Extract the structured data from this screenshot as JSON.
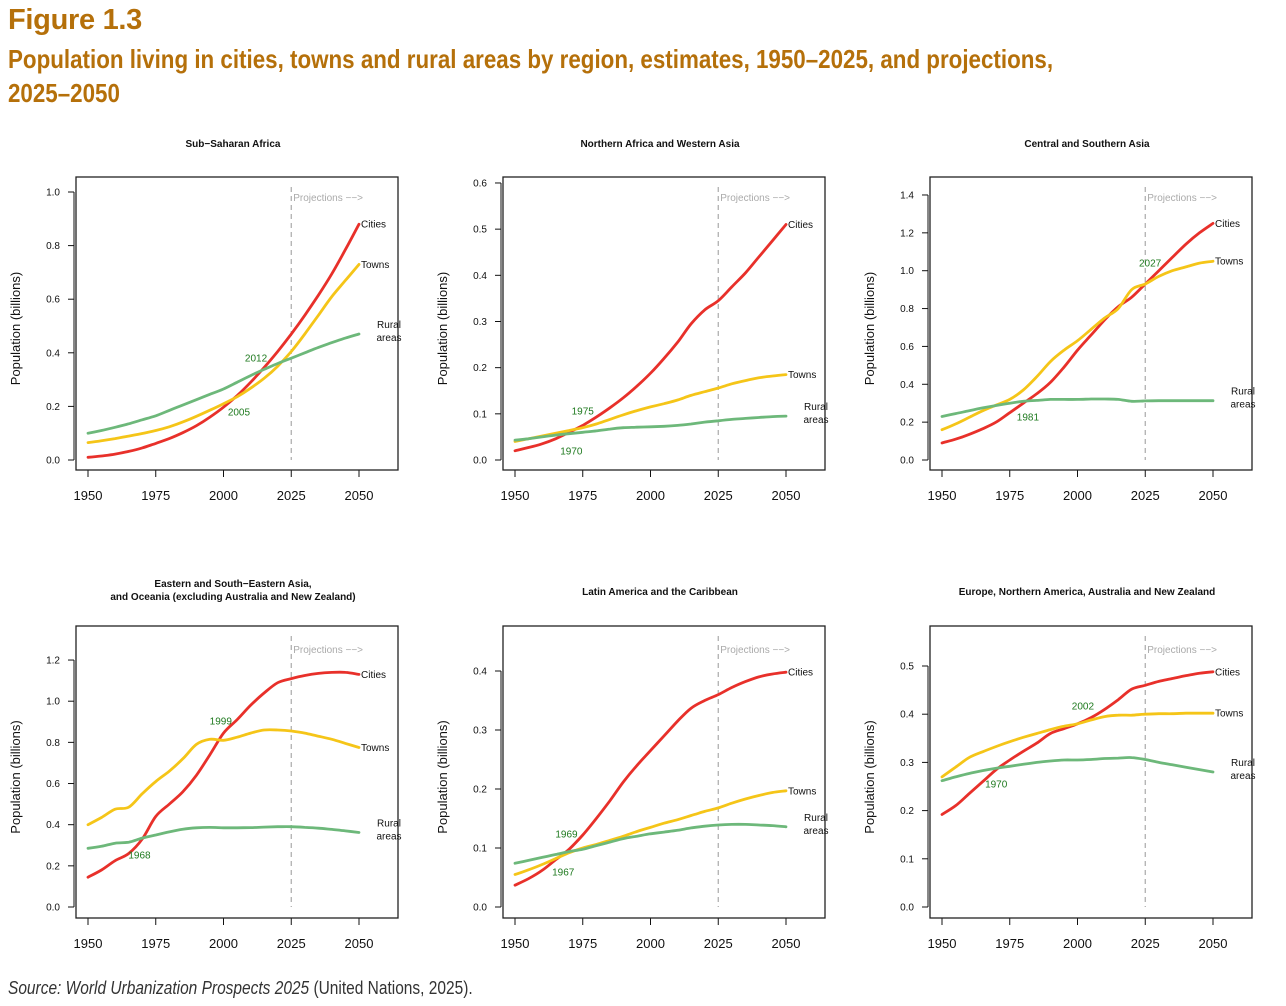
{
  "figure": {
    "label": "Figure 1.3",
    "title": "Population living in cities, towns and rural areas by region, estimates, 1950–2025, and projections, 2025–2050",
    "source_italic": "Source: World Urbanization Prospects 2025",
    "source_rest": " (United Nations, 2025)."
  },
  "colors": {
    "title": "#B5700A",
    "cities": "#E8302A",
    "towns": "#F5C518",
    "rural": "#6DB87A",
    "annotation": "#1F7A1F",
    "projection_line": "#AAAAAA"
  },
  "chart_data": [
    {
      "type": "line",
      "title": "Sub−Saharan Africa",
      "xlabel": "",
      "ylabel": "Population (billions)",
      "x": [
        1950,
        1955,
        1960,
        1965,
        1970,
        1975,
        1980,
        1985,
        1990,
        1995,
        2000,
        2005,
        2010,
        2015,
        2020,
        2025,
        2030,
        2035,
        2040,
        2045,
        2050
      ],
      "xticks": [
        1950,
        1975,
        2000,
        2025,
        2050
      ],
      "yticks": [
        "0.0",
        "0.2",
        "0.4",
        "0.6",
        "0.8",
        "1.0"
      ],
      "ylim": [
        0,
        1.0
      ],
      "projection_start": 2025,
      "projection_label": "Projections −−>",
      "series": [
        {
          "name": "Cities",
          "label": "Cities",
          "values": [
            0.01,
            0.015,
            0.022,
            0.032,
            0.045,
            0.062,
            0.08,
            0.102,
            0.128,
            0.16,
            0.197,
            0.24,
            0.29,
            0.345,
            0.405,
            0.47,
            0.54,
            0.615,
            0.695,
            0.785,
            0.88
          ]
        },
        {
          "name": "Towns",
          "label": "Towns",
          "values": [
            0.065,
            0.072,
            0.08,
            0.089,
            0.099,
            0.11,
            0.124,
            0.142,
            0.163,
            0.186,
            0.21,
            0.236,
            0.268,
            0.305,
            0.35,
            0.405,
            0.47,
            0.54,
            0.61,
            0.67,
            0.73
          ]
        },
        {
          "name": "Rural areas",
          "label": "Rural areas",
          "values": [
            0.1,
            0.11,
            0.122,
            0.135,
            0.15,
            0.165,
            0.185,
            0.205,
            0.225,
            0.245,
            0.265,
            0.29,
            0.315,
            0.338,
            0.36,
            0.38,
            0.4,
            0.42,
            0.438,
            0.455,
            0.47
          ]
        }
      ],
      "annotations": [
        {
          "text": "2012",
          "year": 2012,
          "value": 0.38
        },
        {
          "text": "2005",
          "year": 2005.7,
          "value": 0.18
        }
      ]
    },
    {
      "type": "line",
      "title": "Northern Africa and Western Asia",
      "xlabel": "",
      "ylabel": "Population (billions)",
      "x": [
        1950,
        1955,
        1960,
        1965,
        1970,
        1975,
        1980,
        1985,
        1990,
        1995,
        2000,
        2005,
        2010,
        2015,
        2020,
        2025,
        2030,
        2035,
        2040,
        2045,
        2050
      ],
      "xticks": [
        1950,
        1975,
        2000,
        2025,
        2050
      ],
      "yticks": [
        "0.0",
        "0.1",
        "0.2",
        "0.3",
        "0.4",
        "0.5",
        "0.6"
      ],
      "ylim": [
        0,
        0.6
      ],
      "projection_start": 2025,
      "projection_label": "Projections −−>",
      "series": [
        {
          "name": "Cities",
          "label": "Cities",
          "values": [
            0.02,
            0.027,
            0.035,
            0.046,
            0.06,
            0.075,
            0.093,
            0.113,
            0.135,
            0.16,
            0.188,
            0.22,
            0.255,
            0.295,
            0.325,
            0.345,
            0.375,
            0.405,
            0.44,
            0.475,
            0.51
          ]
        },
        {
          "name": "Towns",
          "label": "Towns",
          "values": [
            0.04,
            0.046,
            0.052,
            0.058,
            0.064,
            0.07,
            0.078,
            0.088,
            0.098,
            0.107,
            0.115,
            0.122,
            0.13,
            0.14,
            0.148,
            0.156,
            0.165,
            0.172,
            0.178,
            0.182,
            0.185
          ]
        },
        {
          "name": "Rural areas",
          "label": "Rural areas",
          "values": [
            0.043,
            0.046,
            0.05,
            0.054,
            0.057,
            0.06,
            0.063,
            0.067,
            0.07,
            0.071,
            0.072,
            0.073,
            0.075,
            0.078,
            0.082,
            0.085,
            0.088,
            0.09,
            0.092,
            0.094,
            0.095
          ]
        }
      ],
      "annotations": [
        {
          "text": "1975",
          "year": 1975,
          "value": 0.106
        },
        {
          "text": "1970",
          "year": 1970.8,
          "value": 0.02
        }
      ]
    },
    {
      "type": "line",
      "title": "Central and Southern Asia",
      "xlabel": "",
      "ylabel": "Population (billions)",
      "x": [
        1950,
        1955,
        1960,
        1965,
        1970,
        1975,
        1980,
        1985,
        1990,
        1995,
        2000,
        2005,
        2010,
        2015,
        2020,
        2025,
        2030,
        2035,
        2040,
        2045,
        2050
      ],
      "xticks": [
        1950,
        1975,
        2000,
        2025,
        2050
      ],
      "yticks": [
        "0.0",
        "0.2",
        "0.4",
        "0.6",
        "0.8",
        "1.0",
        "1.2",
        "1.4"
      ],
      "ylim": [
        0,
        1.4
      ],
      "projection_start": 2025,
      "projection_label": "Projections −−>",
      "series": [
        {
          "name": "Cities",
          "label": "Cities",
          "values": [
            0.09,
            0.11,
            0.135,
            0.165,
            0.2,
            0.25,
            0.3,
            0.35,
            0.41,
            0.49,
            0.58,
            0.66,
            0.74,
            0.81,
            0.86,
            0.93,
            1.0,
            1.07,
            1.14,
            1.2,
            1.25
          ]
        },
        {
          "name": "Towns",
          "label": "Towns",
          "values": [
            0.16,
            0.19,
            0.225,
            0.26,
            0.29,
            0.32,
            0.37,
            0.44,
            0.52,
            0.58,
            0.63,
            0.69,
            0.75,
            0.8,
            0.9,
            0.93,
            0.97,
            1.0,
            1.02,
            1.04,
            1.05
          ]
        },
        {
          "name": "Rural areas",
          "label": "Rural areas",
          "values": [
            0.23,
            0.245,
            0.26,
            0.275,
            0.288,
            0.3,
            0.31,
            0.315,
            0.32,
            0.32,
            0.32,
            0.322,
            0.322,
            0.32,
            0.31,
            0.312,
            0.313,
            0.313,
            0.313,
            0.313,
            0.313
          ]
        }
      ],
      "annotations": [
        {
          "text": "1981",
          "year": 1981.7,
          "value": 0.227
        },
        {
          "text": "2027",
          "year": 2026.8,
          "value": 1.04
        }
      ]
    },
    {
      "type": "line",
      "title": "Eastern and South−Eastern Asia,\nand Oceania (excluding Australia and New Zealand)",
      "title_lines": [
        "Eastern and South−Eastern Asia,",
        "and Oceania (excluding Australia and New Zealand)"
      ],
      "xlabel": "",
      "ylabel": "Population (billions)",
      "x": [
        1950,
        1955,
        1960,
        1965,
        1970,
        1975,
        1980,
        1985,
        1990,
        1995,
        2000,
        2005,
        2010,
        2015,
        2020,
        2025,
        2030,
        2035,
        2040,
        2045,
        2050
      ],
      "xticks": [
        1950,
        1975,
        2000,
        2025,
        2050
      ],
      "yticks": [
        "0.0",
        "0.2",
        "0.4",
        "0.6",
        "0.8",
        "1.0",
        "1.2"
      ],
      "ylim": [
        0,
        1.2
      ],
      "projection_start": 2025,
      "projection_label": "Projections −−>",
      "series": [
        {
          "name": "Cities",
          "label": "Cities",
          "values": [
            0.145,
            0.18,
            0.225,
            0.26,
            0.33,
            0.44,
            0.5,
            0.56,
            0.64,
            0.74,
            0.845,
            0.91,
            0.98,
            1.04,
            1.09,
            1.11,
            1.125,
            1.135,
            1.14,
            1.14,
            1.13
          ]
        },
        {
          "name": "Towns",
          "label": "Towns",
          "values": [
            0.4,
            0.435,
            0.475,
            0.485,
            0.55,
            0.61,
            0.66,
            0.72,
            0.79,
            0.815,
            0.81,
            0.825,
            0.845,
            0.86,
            0.86,
            0.855,
            0.845,
            0.83,
            0.815,
            0.795,
            0.775
          ]
        },
        {
          "name": "Rural areas",
          "label": "Rural areas",
          "values": [
            0.285,
            0.295,
            0.31,
            0.315,
            0.335,
            0.35,
            0.365,
            0.378,
            0.385,
            0.387,
            0.385,
            0.385,
            0.386,
            0.388,
            0.39,
            0.39,
            0.387,
            0.383,
            0.377,
            0.37,
            0.362
          ]
        }
      ],
      "annotations": [
        {
          "text": "1999",
          "year": 1999,
          "value": 0.904
        },
        {
          "text": "1968",
          "year": 1969,
          "value": 0.253
        }
      ]
    },
    {
      "type": "line",
      "title": "Latin America and the Caribbean",
      "xlabel": "",
      "ylabel": "Population (billions)",
      "x": [
        1950,
        1955,
        1960,
        1965,
        1970,
        1975,
        1980,
        1985,
        1990,
        1995,
        2000,
        2005,
        2010,
        2015,
        2020,
        2025,
        2030,
        2035,
        2040,
        2045,
        2050
      ],
      "xticks": [
        1950,
        1975,
        2000,
        2025,
        2050
      ],
      "yticks": [
        "0.0",
        "0.1",
        "0.2",
        "0.3",
        "0.4"
      ],
      "ylim": [
        0,
        0.4
      ],
      "projection_start": 2025,
      "projection_label": "Projections −−>",
      "series": [
        {
          "name": "Cities",
          "label": "Cities",
          "values": [
            0.037,
            0.048,
            0.062,
            0.08,
            0.098,
            0.122,
            0.15,
            0.18,
            0.212,
            0.24,
            0.265,
            0.29,
            0.315,
            0.337,
            0.35,
            0.36,
            0.372,
            0.382,
            0.39,
            0.395,
            0.398
          ]
        },
        {
          "name": "Towns",
          "label": "Towns",
          "values": [
            0.055,
            0.063,
            0.072,
            0.082,
            0.092,
            0.1,
            0.106,
            0.113,
            0.12,
            0.128,
            0.135,
            0.142,
            0.148,
            0.155,
            0.162,
            0.168,
            0.176,
            0.183,
            0.189,
            0.194,
            0.197
          ]
        },
        {
          "name": "Rural areas",
          "label": "Rural areas",
          "values": [
            0.074,
            0.079,
            0.084,
            0.089,
            0.094,
            0.098,
            0.104,
            0.11,
            0.116,
            0.12,
            0.124,
            0.127,
            0.13,
            0.134,
            0.137,
            0.139,
            0.14,
            0.14,
            0.139,
            0.138,
            0.136
          ]
        }
      ],
      "annotations": [
        {
          "text": "1969",
          "year": 1969,
          "value": 0.124
        },
        {
          "text": "1967",
          "year": 1967.8,
          "value": 0.059
        }
      ]
    },
    {
      "type": "line",
      "title": "Europe, Northern America, Australia and New Zealand",
      "xlabel": "",
      "ylabel": "Population (billions)",
      "x": [
        1950,
        1955,
        1960,
        1965,
        1970,
        1975,
        1980,
        1985,
        1990,
        1995,
        2000,
        2005,
        2010,
        2015,
        2020,
        2025,
        2030,
        2035,
        2040,
        2045,
        2050
      ],
      "xticks": [
        1950,
        1975,
        2000,
        2025,
        2050
      ],
      "yticks": [
        "0.0",
        "0.1",
        "0.2",
        "0.3",
        "0.4",
        "0.5"
      ],
      "ylim": [
        0,
        0.5
      ],
      "projection_start": 2025,
      "projection_label": "Projections −−>",
      "series": [
        {
          "name": "Cities",
          "label": "Cities",
          "values": [
            0.192,
            0.21,
            0.235,
            0.26,
            0.285,
            0.305,
            0.323,
            0.34,
            0.36,
            0.37,
            0.38,
            0.393,
            0.41,
            0.43,
            0.452,
            0.46,
            0.468,
            0.474,
            0.48,
            0.485,
            0.488
          ]
        },
        {
          "name": "Towns",
          "label": "Towns",
          "values": [
            0.27,
            0.29,
            0.31,
            0.322,
            0.333,
            0.343,
            0.352,
            0.36,
            0.368,
            0.375,
            0.38,
            0.388,
            0.395,
            0.398,
            0.398,
            0.4,
            0.401,
            0.401,
            0.402,
            0.402,
            0.402
          ]
        },
        {
          "name": "Rural areas",
          "label": "Rural areas",
          "values": [
            0.262,
            0.27,
            0.277,
            0.283,
            0.288,
            0.292,
            0.296,
            0.3,
            0.303,
            0.305,
            0.305,
            0.306,
            0.308,
            0.309,
            0.31,
            0.306,
            0.3,
            0.295,
            0.29,
            0.285,
            0.28
          ]
        }
      ],
      "annotations": [
        {
          "text": "2002",
          "year": 2002,
          "value": 0.417
        },
        {
          "text": "1970",
          "year": 1970,
          "value": 0.255
        }
      ]
    }
  ]
}
